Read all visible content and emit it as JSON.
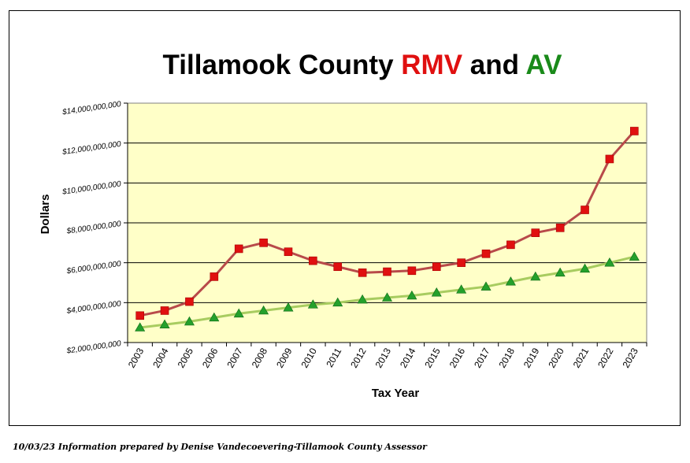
{
  "title": {
    "prefix": "Tillamook County ",
    "rmv": "RMV",
    "middle": " and ",
    "av": "AV"
  },
  "footer": "10/03/23 Information prepared by Denise Vandecoevering-Tillamook County Assessor",
  "colors": {
    "plot_bg": "#ffffc8",
    "rmv_line": "#b84a4a",
    "rmv_marker": "#e01010",
    "av_line": "#a8cc60",
    "av_marker": "#24a02c",
    "title_rmv": "#e01010",
    "title_av": "#1a8a1a"
  },
  "chart_data": {
    "type": "line",
    "title": "Tillamook County RMV and AV",
    "xlabel": "Tax Year",
    "ylabel": "Dollars",
    "ylim": [
      2000000000,
      14000000000
    ],
    "yticks": [
      2000000000,
      4000000000,
      6000000000,
      8000000000,
      10000000000,
      12000000000,
      14000000000
    ],
    "ytick_labels": [
      "$2,000,000,000",
      "$4,000,000,000",
      "$6,000,000,000",
      "$8,000,000,000",
      "$10,000,000,000",
      "$12,000,000,000",
      "$14,000,000,000"
    ],
    "grid": true,
    "categories": [
      "2003",
      "2004",
      "2005",
      "2006",
      "2007",
      "2008",
      "2009",
      "2010",
      "2011",
      "2012",
      "2013",
      "2014",
      "2015",
      "2016",
      "2017",
      "2018",
      "2019",
      "2020",
      "2021",
      "2022",
      "2023"
    ],
    "series": [
      {
        "key": "rmv",
        "marker": "square",
        "values": [
          3350000000,
          3600000000,
          4050000000,
          5300000000,
          6700000000,
          7000000000,
          6550000000,
          6100000000,
          5800000000,
          5500000000,
          5550000000,
          5600000000,
          5800000000,
          6000000000,
          6450000000,
          6900000000,
          7500000000,
          7750000000,
          8650000000,
          11200000000,
          12600000000
        ]
      },
      {
        "key": "av",
        "marker": "triangle",
        "values": [
          2750000000,
          2900000000,
          3050000000,
          3250000000,
          3450000000,
          3600000000,
          3750000000,
          3900000000,
          4000000000,
          4150000000,
          4250000000,
          4350000000,
          4500000000,
          4650000000,
          4800000000,
          5050000000,
          5300000000,
          5500000000,
          5700000000,
          6000000000,
          6300000000
        ]
      }
    ]
  }
}
